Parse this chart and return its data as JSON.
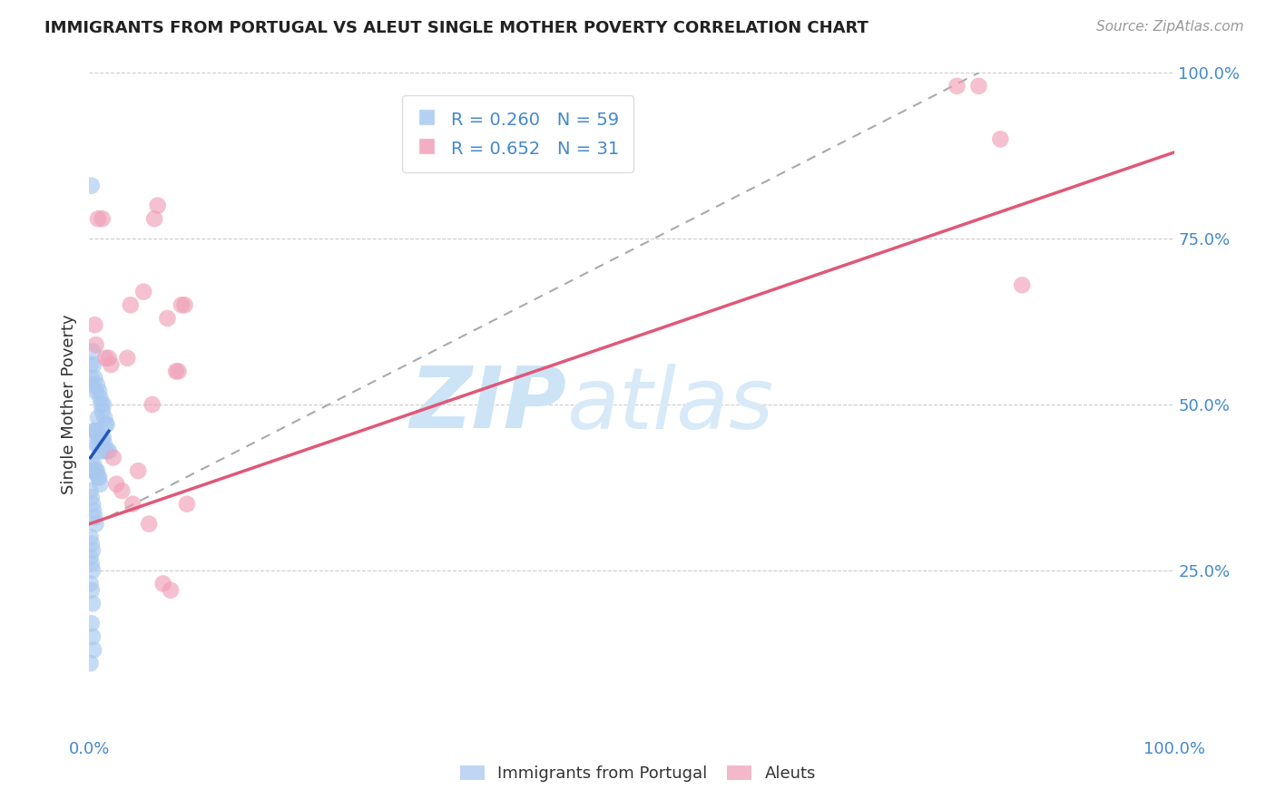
{
  "title": "IMMIGRANTS FROM PORTUGAL VS ALEUT SINGLE MOTHER POVERTY CORRELATION CHART",
  "source": "Source: ZipAtlas.com",
  "ylabel": "Single Mother Poverty",
  "bottom_legend": [
    "Immigrants from Portugal",
    "Aleuts"
  ],
  "portugal_color": "#a8c8f0",
  "aleut_color": "#f0a0b8",
  "portugal_line_color": "#2255bb",
  "aleut_line_color": "#e05878",
  "watermark_zip": "ZIP",
  "watermark_atlas": "atlas",
  "watermark_color": "#ddeeff",
  "background_color": "#ffffff",
  "grid_color": "#cccccc",
  "tick_color": "#4488cc",
  "legend_r1": "R = 0.260",
  "legend_n1": "N = 59",
  "legend_r2": "R = 0.652",
  "legend_n2": "N = 31",
  "xlim": [
    0.0,
    1.0
  ],
  "ylim": [
    0.0,
    1.0
  ],
  "portugal_points": [
    [
      0.002,
      0.83
    ],
    [
      0.001,
      0.56
    ],
    [
      0.003,
      0.58
    ],
    [
      0.004,
      0.56
    ],
    [
      0.002,
      0.54
    ],
    [
      0.005,
      0.54
    ],
    [
      0.003,
      0.53
    ],
    [
      0.006,
      0.52
    ],
    [
      0.007,
      0.53
    ],
    [
      0.009,
      0.52
    ],
    [
      0.01,
      0.51
    ],
    [
      0.011,
      0.5
    ],
    [
      0.012,
      0.49
    ],
    [
      0.013,
      0.5
    ],
    [
      0.008,
      0.48
    ],
    [
      0.014,
      0.48
    ],
    [
      0.015,
      0.47
    ],
    [
      0.016,
      0.47
    ],
    [
      0.004,
      0.46
    ],
    [
      0.005,
      0.46
    ],
    [
      0.007,
      0.46
    ],
    [
      0.009,
      0.45
    ],
    [
      0.011,
      0.45
    ],
    [
      0.013,
      0.45
    ],
    [
      0.006,
      0.44
    ],
    [
      0.008,
      0.44
    ],
    [
      0.01,
      0.43
    ],
    [
      0.012,
      0.43
    ],
    [
      0.014,
      0.44
    ],
    [
      0.016,
      0.43
    ],
    [
      0.018,
      0.43
    ],
    [
      0.002,
      0.41
    ],
    [
      0.003,
      0.4
    ],
    [
      0.004,
      0.41
    ],
    [
      0.005,
      0.4
    ],
    [
      0.006,
      0.4
    ],
    [
      0.007,
      0.4
    ],
    [
      0.008,
      0.39
    ],
    [
      0.009,
      0.39
    ],
    [
      0.01,
      0.38
    ],
    [
      0.001,
      0.37
    ],
    [
      0.002,
      0.36
    ],
    [
      0.003,
      0.35
    ],
    [
      0.004,
      0.34
    ],
    [
      0.005,
      0.33
    ],
    [
      0.006,
      0.32
    ],
    [
      0.001,
      0.3
    ],
    [
      0.002,
      0.29
    ],
    [
      0.003,
      0.28
    ],
    [
      0.001,
      0.27
    ],
    [
      0.002,
      0.26
    ],
    [
      0.003,
      0.25
    ],
    [
      0.001,
      0.23
    ],
    [
      0.002,
      0.22
    ],
    [
      0.003,
      0.2
    ],
    [
      0.002,
      0.17
    ],
    [
      0.003,
      0.15
    ],
    [
      0.004,
      0.13
    ],
    [
      0.001,
      0.11
    ]
  ],
  "aleut_points": [
    [
      0.005,
      0.62
    ],
    [
      0.006,
      0.59
    ],
    [
      0.008,
      0.78
    ],
    [
      0.012,
      0.78
    ],
    [
      0.015,
      0.57
    ],
    [
      0.018,
      0.57
    ],
    [
      0.02,
      0.56
    ],
    [
      0.022,
      0.42
    ],
    [
      0.025,
      0.38
    ],
    [
      0.03,
      0.37
    ],
    [
      0.035,
      0.57
    ],
    [
      0.038,
      0.65
    ],
    [
      0.04,
      0.35
    ],
    [
      0.045,
      0.4
    ],
    [
      0.05,
      0.67
    ],
    [
      0.055,
      0.32
    ],
    [
      0.058,
      0.5
    ],
    [
      0.06,
      0.78
    ],
    [
      0.063,
      0.8
    ],
    [
      0.068,
      0.23
    ],
    [
      0.072,
      0.63
    ],
    [
      0.075,
      0.22
    ],
    [
      0.08,
      0.55
    ],
    [
      0.082,
      0.55
    ],
    [
      0.085,
      0.65
    ],
    [
      0.088,
      0.65
    ],
    [
      0.09,
      0.35
    ],
    [
      0.8,
      0.98
    ],
    [
      0.82,
      0.98
    ],
    [
      0.84,
      0.9
    ],
    [
      0.86,
      0.68
    ]
  ],
  "dashed_line": [
    [
      0.005,
      0.32
    ],
    [
      0.82,
      1.0
    ]
  ],
  "portugal_reg_line": [
    [
      0.001,
      0.42
    ],
    [
      0.018,
      0.46
    ]
  ],
  "aleut_reg_line": [
    [
      0.0,
      0.32
    ],
    [
      1.0,
      0.88
    ]
  ]
}
